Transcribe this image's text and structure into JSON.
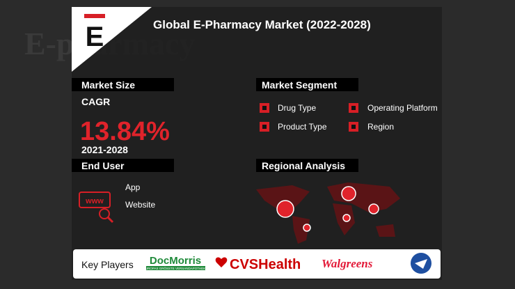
{
  "header": {
    "logo": "E",
    "title": "Global E-Pharmacy Market (2022-2028)",
    "background_text": "E-pharmacy"
  },
  "market_size": {
    "heading": "Market Size",
    "label": "CAGR",
    "value": "13.84%",
    "period": "2021-2028"
  },
  "market_segment": {
    "heading": "Market Segment",
    "items": [
      "Drug Type",
      "Operating Platform",
      "Product Type",
      "Region"
    ]
  },
  "end_user": {
    "heading": "End User",
    "icon_text": "www",
    "items": [
      "App",
      "Website"
    ]
  },
  "regional_analysis": {
    "heading": "Regional Analysis"
  },
  "key_players": {
    "heading": "Key Players",
    "players": [
      "DocMorris",
      "CVSHealth",
      "Walgreens"
    ],
    "docmorris_tagline": "EUROPAS GRÖSSTE VERSANDAPOTHEKE"
  }
}
